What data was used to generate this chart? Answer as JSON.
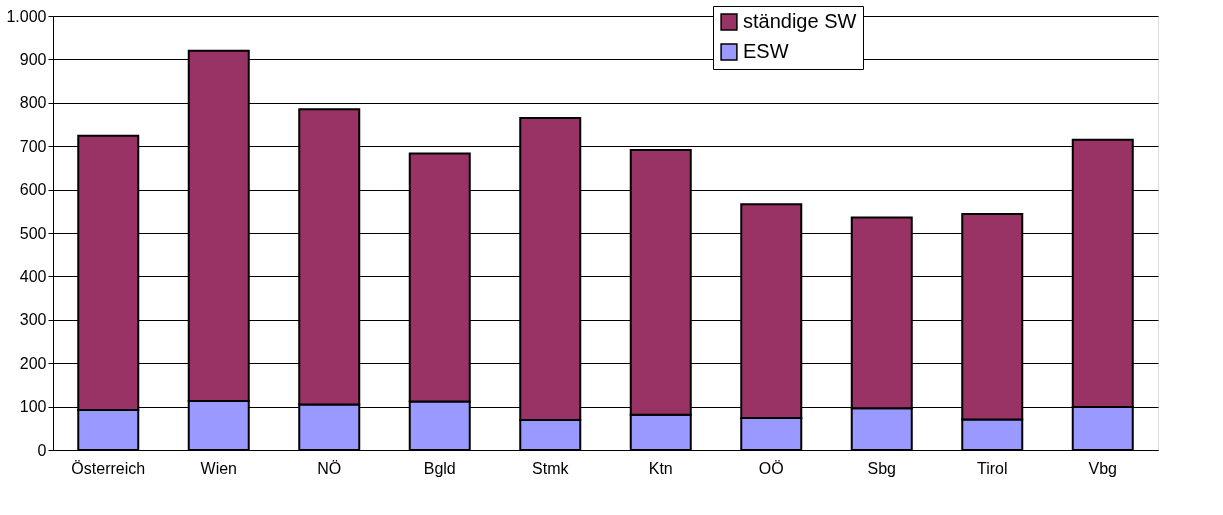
{
  "chart_data": {
    "type": "bar",
    "stacked": true,
    "categories": [
      "Österreich",
      "Wien",
      "NÖ",
      "Bgld",
      "Stmk",
      "Ktn",
      "OÖ",
      "Sbg",
      "Tirol",
      "Vbg"
    ],
    "series": [
      {
        "name": "ESW",
        "color": "#9999ff",
        "values": [
          92,
          113,
          105,
          112,
          69,
          81,
          74,
          96,
          70,
          99
        ]
      },
      {
        "name": "ständige SW",
        "color": "#993366",
        "values": [
          632,
          807,
          680,
          571,
          696,
          610,
          492,
          440,
          474,
          616
        ]
      }
    ],
    "ylim": [
      0,
      1000
    ],
    "yticks": [
      0,
      100,
      200,
      300,
      400,
      500,
      600,
      700,
      800,
      900,
      {
        "value": 1000,
        "label": "1.000"
      }
    ],
    "grid": "y",
    "legend": "top"
  }
}
